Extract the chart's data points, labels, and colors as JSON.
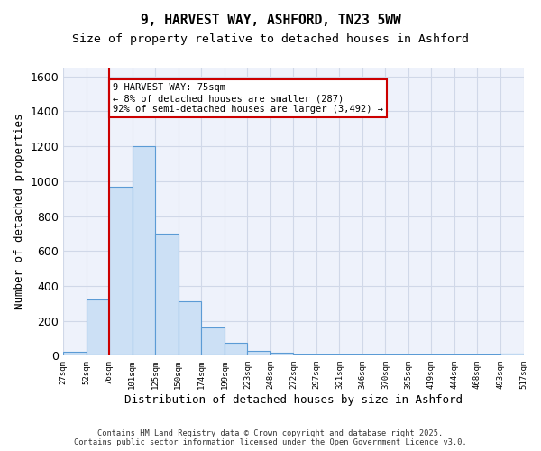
{
  "title_line1": "9, HARVEST WAY, ASHFORD, TN23 5WW",
  "title_line2": "Size of property relative to detached houses in Ashford",
  "xlabel": "Distribution of detached houses by size in Ashford",
  "ylabel": "Number of detached properties",
  "bin_labels": [
    "27sqm",
    "52sqm",
    "76sqm",
    "101sqm",
    "125sqm",
    "150sqm",
    "174sqm",
    "199sqm",
    "223sqm",
    "248sqm",
    "272sqm",
    "297sqm",
    "321sqm",
    "346sqm",
    "370sqm",
    "395sqm",
    "419sqm",
    "444sqm",
    "468sqm",
    "493sqm",
    "517sqm"
  ],
  "bar_heights": [
    20,
    320,
    970,
    1200,
    700,
    310,
    160,
    75,
    25,
    15,
    8,
    5,
    5,
    5,
    5,
    5,
    5,
    5,
    5,
    10
  ],
  "bar_color": "#cce0f5",
  "bar_edge_color": "#5b9bd5",
  "vline_position": 1.5,
  "vline_color": "#cc0000",
  "annotation_text": "9 HARVEST WAY: 75sqm\n← 8% of detached houses are smaller (287)\n92% of semi-detached houses are larger (3,492) →",
  "annotation_box_color": "#cc0000",
  "ylim": [
    0,
    1650
  ],
  "yticks": [
    0,
    200,
    400,
    600,
    800,
    1000,
    1200,
    1400,
    1600
  ],
  "grid_color": "#d0d8e8",
  "background_color": "#eef2fb",
  "footer_line1": "Contains HM Land Registry data © Crown copyright and database right 2025.",
  "footer_line2": "Contains public sector information licensed under the Open Government Licence v3.0."
}
